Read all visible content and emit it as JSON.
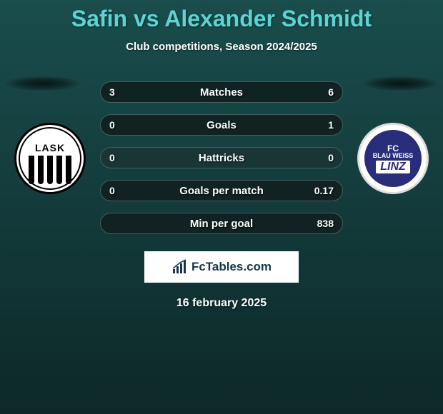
{
  "title": "Safin vs Alexander Schmidt",
  "subtitle": "Club competitions, Season 2024/2025",
  "date": "16 february 2025",
  "watermark": "FcTables.com",
  "team_left": {
    "name": "LASK",
    "badge_bg": "#ffffff",
    "border": "#000000"
  },
  "team_right": {
    "name_fc": "FC",
    "name_blau": "BLAU WEISS",
    "name_linz": "LINZ",
    "badge_bg": "#2a2d7a",
    "border": "#dddddd"
  },
  "stats": [
    {
      "label": "Matches",
      "left_val": "3",
      "right_val": "6",
      "left_pct": 33,
      "right_pct": 67
    },
    {
      "label": "Goals",
      "left_val": "0",
      "right_val": "1",
      "left_pct": 0,
      "right_pct": 100
    },
    {
      "label": "Hattricks",
      "left_val": "0",
      "right_val": "0",
      "left_pct": 0,
      "right_pct": 0
    },
    {
      "label": "Goals per match",
      "left_val": "0",
      "right_val": "0.17",
      "left_pct": 0,
      "right_pct": 100
    },
    {
      "label": "Min per goal",
      "left_val": "",
      "right_val": "838",
      "left_pct": 0,
      "right_pct": 100
    }
  ],
  "colors": {
    "title": "#5dd4d4",
    "bg_top": "#1a4d4d",
    "bg_bottom": "#0d2828",
    "bar_bg": "#1a3535",
    "bar_fill": "rgba(0,0,0,0.35)"
  }
}
